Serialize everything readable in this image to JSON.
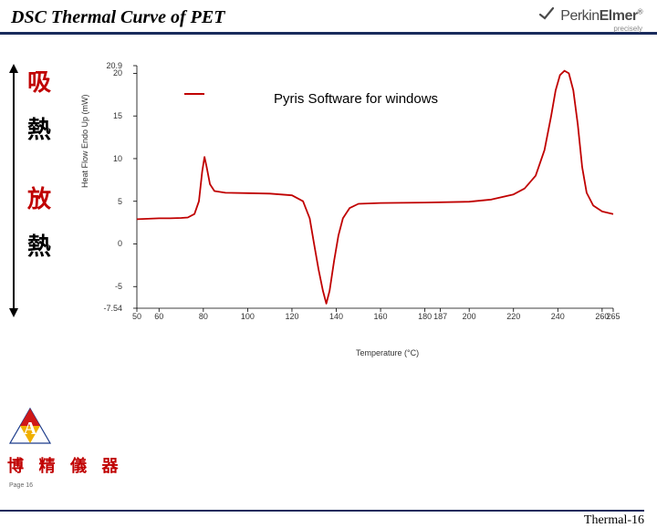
{
  "header": {
    "title": "DSC Thermal Curve of PET",
    "title_fontsize": 20,
    "underline_color": "#1a2b5c",
    "brand": {
      "name_thin": "Perkin",
      "name_bold": "Elmer",
      "tagline": "precisely",
      "logo_color": "#4a4a4a",
      "fontsize": 16
    }
  },
  "side": {
    "char1": "吸",
    "char2": "熱",
    "char3": "放",
    "char4": "熱",
    "color_red": "#c00000",
    "color_black": "#000000",
    "fontsize": 26
  },
  "chart": {
    "type": "line",
    "inner_title": "Pyris Software for windows",
    "inner_title_fontsize": 15,
    "series_color": "#c00000",
    "line_width": 1.8,
    "background_color": "#ffffff",
    "axis_color": "#000000",
    "tick_color": "#333333",
    "xlabel": "Temperature (°C)",
    "ylabel": "Heat Flow Endo Up (mW)",
    "label_fontsize": 9,
    "xlim": [
      50,
      265
    ],
    "ylim": [
      -7.54,
      20.9
    ],
    "xticks": [
      50,
      60,
      80,
      100,
      120,
      140,
      160,
      180,
      187,
      200,
      220,
      240,
      260,
      265
    ],
    "yticks": [
      -7.54,
      -5,
      0,
      5,
      10,
      15,
      20,
      20.9
    ],
    "data": [
      [
        50,
        2.9
      ],
      [
        60,
        3.0
      ],
      [
        65,
        3.0
      ],
      [
        70,
        3.05
      ],
      [
        73,
        3.1
      ],
      [
        76,
        3.5
      ],
      [
        78,
        5.0
      ],
      [
        79.5,
        8.5
      ],
      [
        80.5,
        10.2
      ],
      [
        81.5,
        9.0
      ],
      [
        83,
        7.0
      ],
      [
        85,
        6.2
      ],
      [
        90,
        6.0
      ],
      [
        100,
        5.95
      ],
      [
        110,
        5.9
      ],
      [
        120,
        5.7
      ],
      [
        125,
        5.0
      ],
      [
        128,
        3.0
      ],
      [
        130,
        0.0
      ],
      [
        132,
        -3.0
      ],
      [
        134,
        -5.5
      ],
      [
        135.5,
        -7.0
      ],
      [
        137,
        -5.5
      ],
      [
        139,
        -2.0
      ],
      [
        141,
        1.0
      ],
      [
        143,
        3.0
      ],
      [
        146,
        4.2
      ],
      [
        150,
        4.7
      ],
      [
        160,
        4.8
      ],
      [
        180,
        4.85
      ],
      [
        200,
        4.95
      ],
      [
        210,
        5.2
      ],
      [
        220,
        5.8
      ],
      [
        225,
        6.5
      ],
      [
        230,
        8.0
      ],
      [
        234,
        11.0
      ],
      [
        237,
        15.0
      ],
      [
        239,
        18.0
      ],
      [
        241,
        19.8
      ],
      [
        243,
        20.3
      ],
      [
        245,
        20.0
      ],
      [
        247,
        18.0
      ],
      [
        249,
        14.0
      ],
      [
        251,
        9.0
      ],
      [
        253,
        6.0
      ],
      [
        256,
        4.5
      ],
      [
        260,
        3.8
      ],
      [
        265,
        3.5
      ]
    ]
  },
  "footer": {
    "cn_text": "博 精 儀 器",
    "cn_color": "#c00000",
    "cn_fontsize": 18,
    "page_ref": "Thermal-16",
    "page_ref_fontsize": 14,
    "page_num": "Page 16",
    "logo_colors": {
      "red": "#d01818",
      "yellow": "#f0b000",
      "blue": "#1a3a8a"
    }
  }
}
